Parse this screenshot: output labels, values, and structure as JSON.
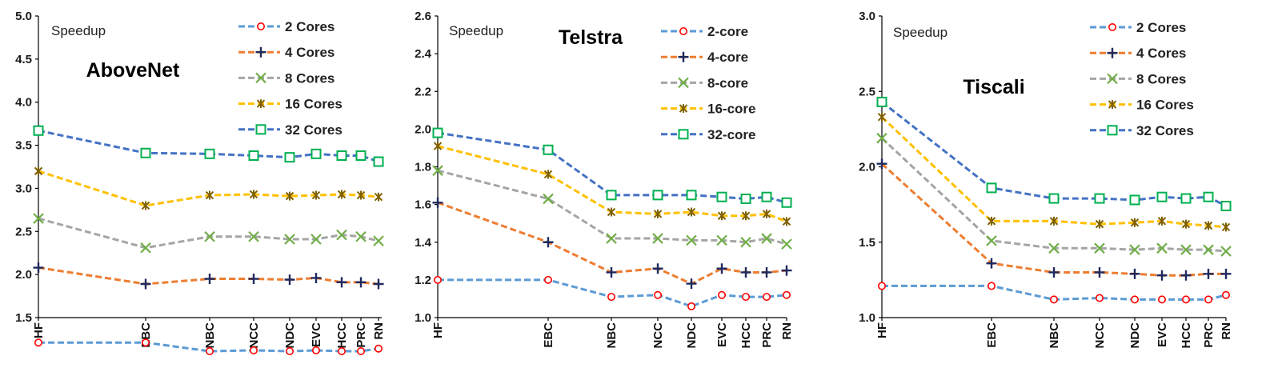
{
  "colors": {
    "c2": "#5b9bd5",
    "c4": "#ed7d31",
    "c8": "#a5a5a5",
    "c16": "#ffc000",
    "c32": "#4472c4",
    "m2": "#ff0000",
    "m4": "#1f2a5e",
    "m8": "#70ad47",
    "m16": "#7f6000",
    "m32": "#00b050"
  },
  "chart_data": [
    {
      "type": "line",
      "title": "AboveNet",
      "ylabel": "Speedup",
      "ylim": [
        1.5,
        5.0
      ],
      "yticks": [
        "1.5",
        "2.0",
        "2.5",
        "3.0",
        "3.5",
        "4.0",
        "4.5",
        "5.0"
      ],
      "categories": [
        "HF",
        "EBC",
        "NBC",
        "NCC",
        "NDC",
        "EVC",
        "HCC",
        "PRC",
        "RN"
      ],
      "series": [
        {
          "name": "2 Cores",
          "values": [
            1.21,
            1.21,
            1.11,
            1.12,
            1.11,
            1.12,
            1.11,
            1.11,
            1.14
          ]
        },
        {
          "name": "4 Cores",
          "values": [
            2.08,
            1.89,
            1.95,
            1.95,
            1.94,
            1.96,
            1.91,
            1.91,
            1.89
          ]
        },
        {
          "name": "8 Cores",
          "values": [
            2.65,
            2.31,
            2.44,
            2.44,
            2.41,
            2.41,
            2.46,
            2.44,
            2.39
          ]
        },
        {
          "name": "16 Cores",
          "values": [
            3.2,
            2.8,
            2.92,
            2.93,
            2.91,
            2.92,
            2.93,
            2.92,
            2.9
          ]
        },
        {
          "name": "32 Cores",
          "values": [
            3.67,
            3.41,
            3.4,
            3.38,
            3.36,
            3.4,
            3.38,
            3.38,
            3.31
          ]
        }
      ]
    },
    {
      "type": "line",
      "title": "Telstra",
      "ylabel": "Speedup",
      "ylim": [
        1.0,
        2.6
      ],
      "yticks": [
        "1.0",
        "1.2",
        "1.4",
        "1.6",
        "1.8",
        "2.0",
        "2.2",
        "2.4",
        "2.6"
      ],
      "categories": [
        "HF",
        "EBC",
        "NBC",
        "NCC",
        "NDC",
        "EVC",
        "HCC",
        "PRC",
        "RN"
      ],
      "series": [
        {
          "name": "2-core",
          "values": [
            1.2,
            1.2,
            1.11,
            1.12,
            1.06,
            1.12,
            1.11,
            1.11,
            1.12
          ]
        },
        {
          "name": "4-core",
          "values": [
            1.61,
            1.4,
            1.24,
            1.26,
            1.18,
            1.26,
            1.24,
            1.24,
            1.25
          ]
        },
        {
          "name": "8-core",
          "values": [
            1.78,
            1.63,
            1.42,
            1.42,
            1.41,
            1.41,
            1.4,
            1.42,
            1.39
          ]
        },
        {
          "name": "16-core",
          "values": [
            1.91,
            1.76,
            1.56,
            1.55,
            1.56,
            1.54,
            1.54,
            1.55,
            1.51
          ]
        },
        {
          "name": "32-core",
          "values": [
            1.98,
            1.89,
            1.65,
            1.65,
            1.65,
            1.64,
            1.63,
            1.64,
            1.61
          ]
        }
      ]
    },
    {
      "type": "line",
      "title": "Tiscali",
      "ylabel": "Speedup",
      "ylim": [
        1.0,
        3.0
      ],
      "yticks": [
        "1.0",
        "1.5",
        "2.0",
        "2.5",
        "3.0"
      ],
      "categories": [
        "HF",
        "EBC",
        "NBC",
        "NCC",
        "NDC",
        "EVC",
        "HCC",
        "PRC",
        "RN"
      ],
      "series": [
        {
          "name": "2 Cores",
          "values": [
            1.21,
            1.21,
            1.12,
            1.13,
            1.12,
            1.12,
            1.12,
            1.12,
            1.15
          ]
        },
        {
          "name": "4 Cores",
          "values": [
            2.02,
            1.36,
            1.3,
            1.3,
            1.29,
            1.28,
            1.28,
            1.29,
            1.29
          ]
        },
        {
          "name": "8 Cores",
          "values": [
            2.19,
            1.51,
            1.46,
            1.46,
            1.45,
            1.46,
            1.45,
            1.45,
            1.44
          ]
        },
        {
          "name": "16 Cores",
          "values": [
            2.33,
            1.64,
            1.64,
            1.62,
            1.63,
            1.64,
            1.62,
            1.61,
            1.6
          ]
        },
        {
          "name": "32 Cores",
          "values": [
            2.43,
            1.86,
            1.79,
            1.79,
            1.78,
            1.8,
            1.79,
            1.8,
            1.74
          ]
        }
      ]
    }
  ]
}
